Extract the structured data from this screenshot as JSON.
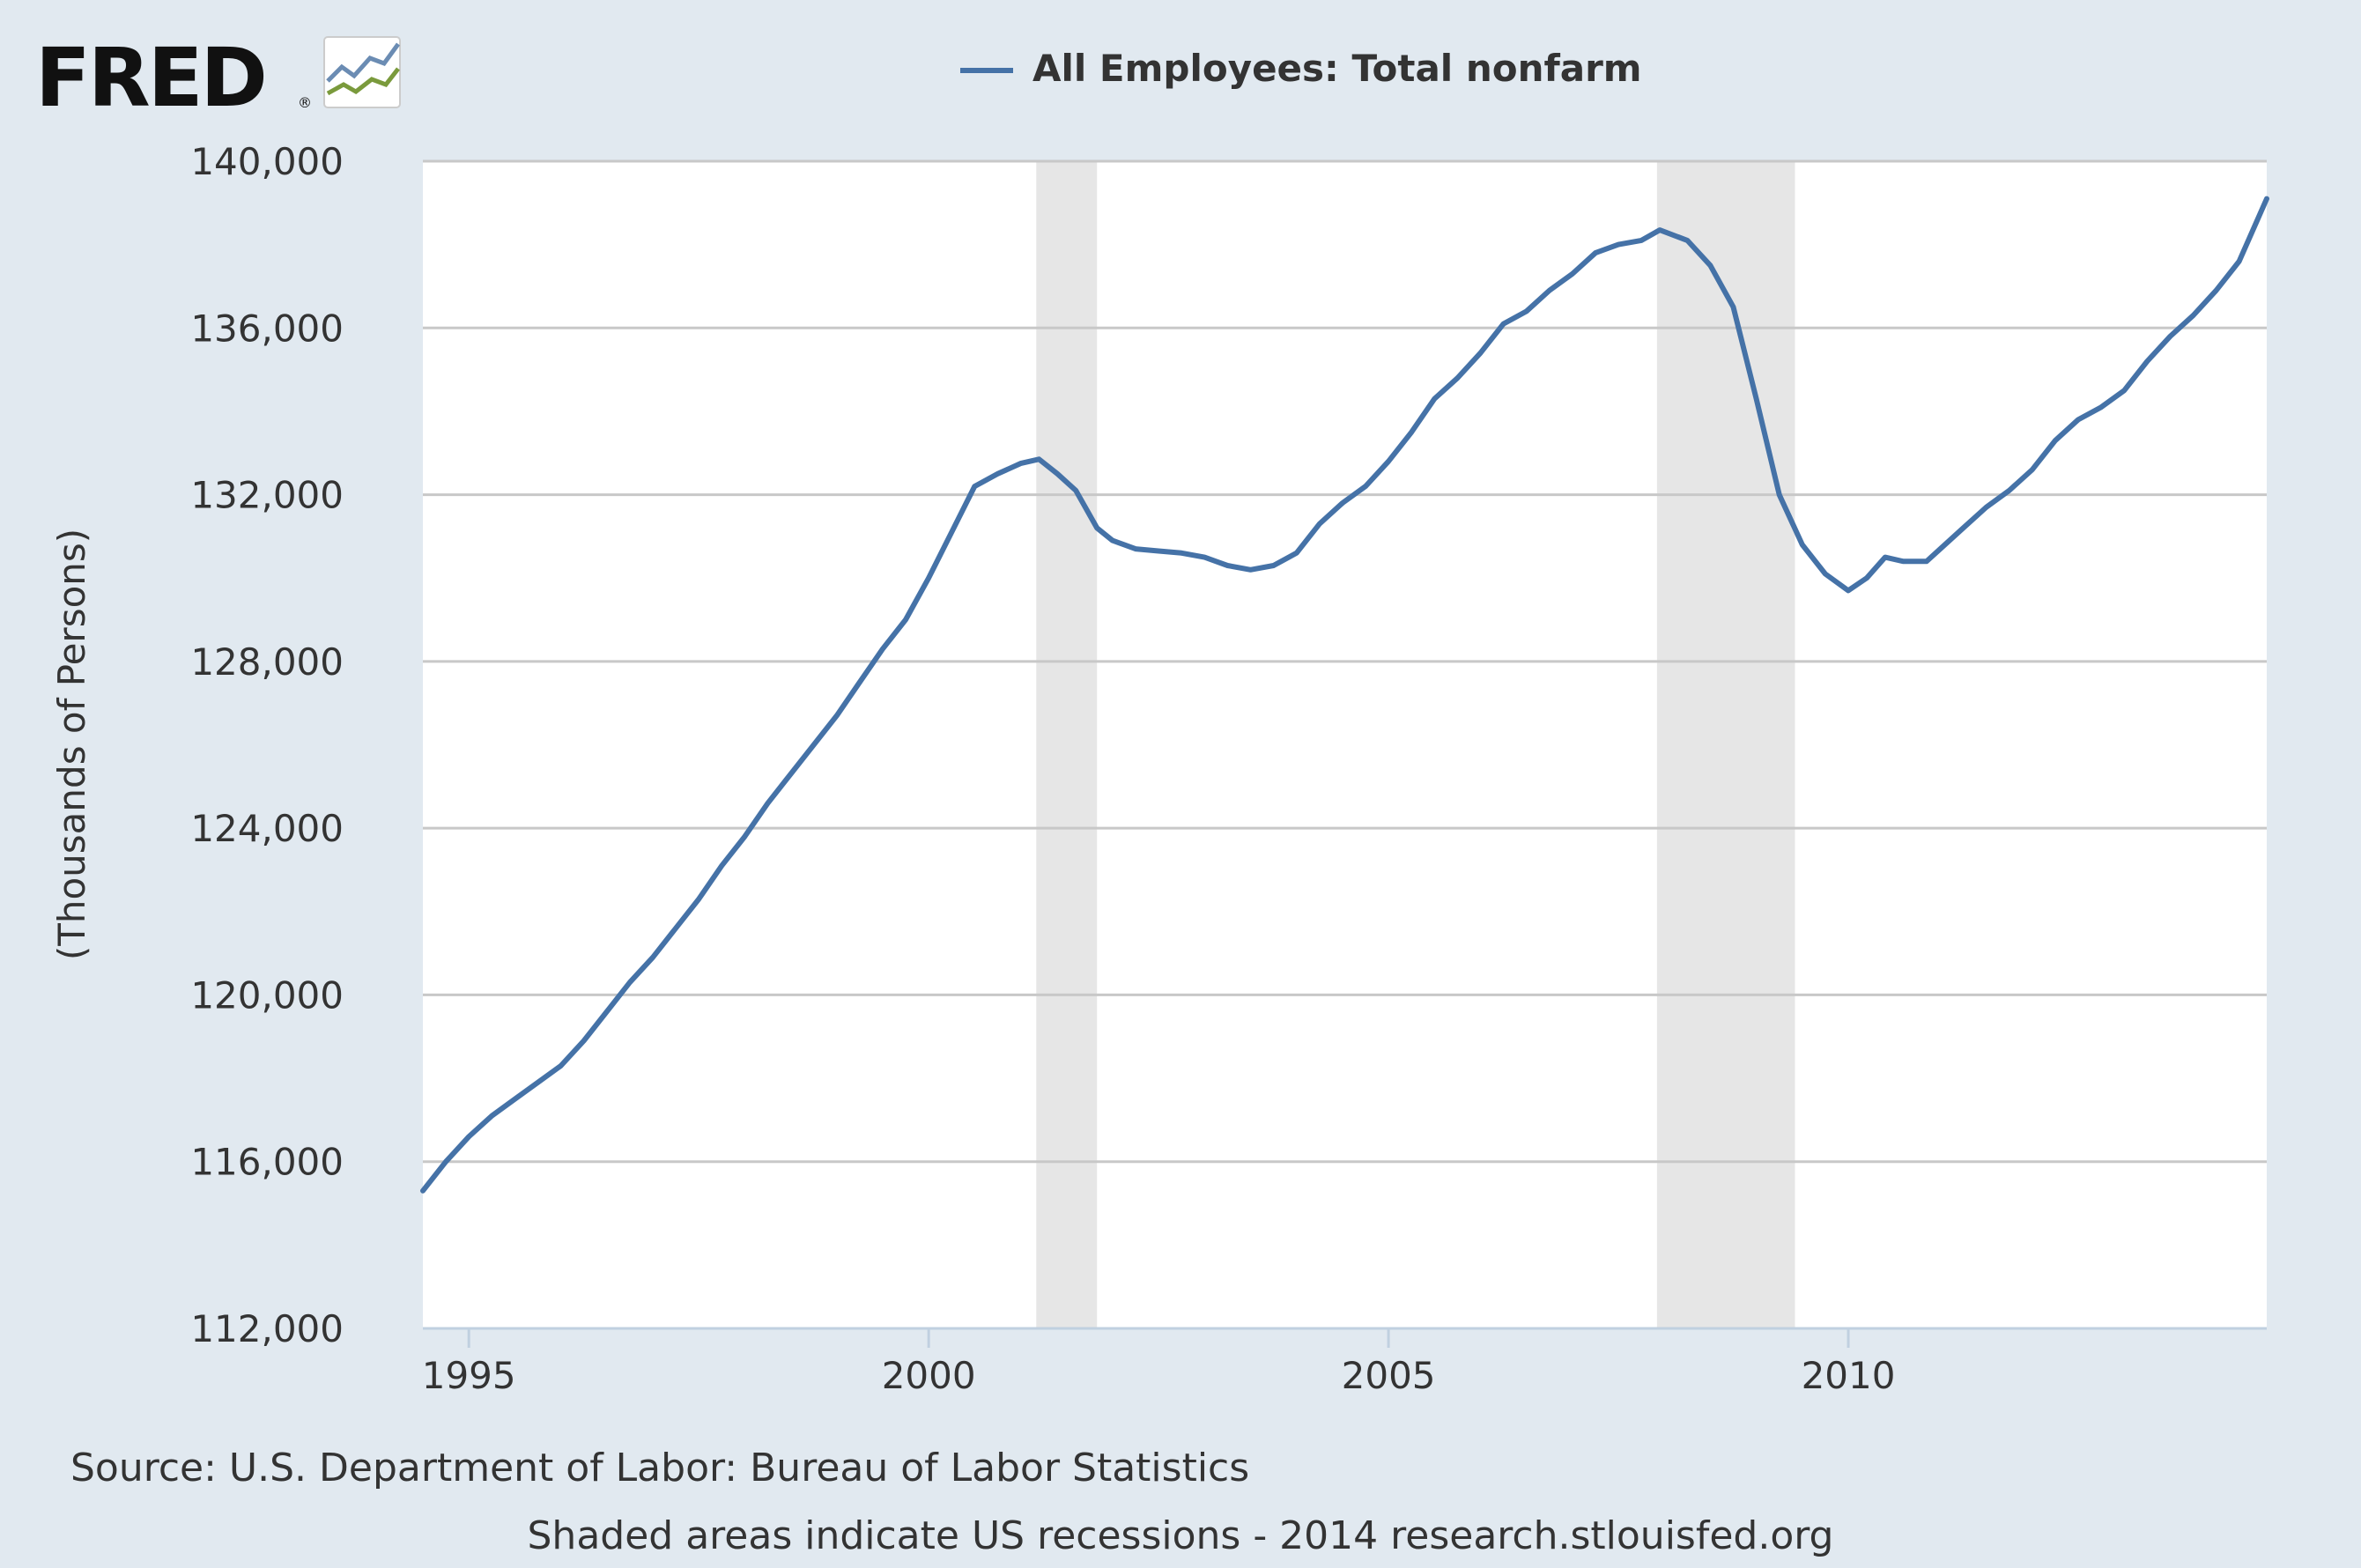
{
  "brand": {
    "logo_text": "FRED",
    "registered_mark": "®"
  },
  "chart_data": {
    "type": "line",
    "title": "",
    "xlabel": "",
    "ylabel": "(Thousands of Persons)",
    "x_range": [
      1994.5,
      2014.55
    ],
    "ylim": [
      112000,
      140000
    ],
    "x_ticks": [
      1995,
      2000,
      2005,
      2010
    ],
    "y_ticks": [
      112000,
      116000,
      120000,
      124000,
      128000,
      132000,
      136000,
      140000
    ],
    "x_tick_labels": [
      "1995",
      "2000",
      "2005",
      "2010"
    ],
    "y_tick_labels": [
      "112,000",
      "116,000",
      "120,000",
      "124,000",
      "128,000",
      "132,000",
      "136,000",
      "140,000"
    ],
    "grid": "horizontal",
    "legend": "top-center",
    "recessions": [
      {
        "start": 2001.17,
        "end": 2001.83
      },
      {
        "start": 2007.92,
        "end": 2009.42
      }
    ],
    "series": [
      {
        "name": "All Employees: Total nonfarm",
        "color": "#4572a7",
        "points": [
          [
            1994.5,
            115300
          ],
          [
            1994.75,
            116000
          ],
          [
            1995.0,
            116600
          ],
          [
            1995.25,
            117100
          ],
          [
            1995.5,
            117500
          ],
          [
            1995.75,
            117900
          ],
          [
            1996.0,
            118300
          ],
          [
            1996.25,
            118900
          ],
          [
            1996.5,
            119600
          ],
          [
            1996.75,
            120300
          ],
          [
            1997.0,
            120900
          ],
          [
            1997.25,
            121600
          ],
          [
            1997.5,
            122300
          ],
          [
            1997.75,
            123100
          ],
          [
            1998.0,
            123800
          ],
          [
            1998.25,
            124600
          ],
          [
            1998.5,
            125300
          ],
          [
            1998.75,
            126000
          ],
          [
            1999.0,
            126700
          ],
          [
            1999.25,
            127500
          ],
          [
            1999.5,
            128300
          ],
          [
            1999.75,
            129000
          ],
          [
            2000.0,
            130000
          ],
          [
            2000.25,
            131100
          ],
          [
            2000.5,
            132200
          ],
          [
            2000.75,
            132500
          ],
          [
            2001.0,
            132750
          ],
          [
            2001.2,
            132850
          ],
          [
            2001.4,
            132500
          ],
          [
            2001.6,
            132100
          ],
          [
            2001.83,
            131200
          ],
          [
            2002.0,
            130900
          ],
          [
            2002.25,
            130700
          ],
          [
            2002.5,
            130650
          ],
          [
            2002.75,
            130600
          ],
          [
            2003.0,
            130500
          ],
          [
            2003.25,
            130300
          ],
          [
            2003.5,
            130200
          ],
          [
            2003.75,
            130300
          ],
          [
            2004.0,
            130600
          ],
          [
            2004.25,
            131300
          ],
          [
            2004.5,
            131800
          ],
          [
            2004.75,
            132200
          ],
          [
            2005.0,
            132800
          ],
          [
            2005.25,
            133500
          ],
          [
            2005.5,
            134300
          ],
          [
            2005.75,
            134800
          ],
          [
            2006.0,
            135400
          ],
          [
            2006.25,
            136100
          ],
          [
            2006.5,
            136400
          ],
          [
            2006.75,
            136900
          ],
          [
            2007.0,
            137300
          ],
          [
            2007.25,
            137800
          ],
          [
            2007.5,
            138000
          ],
          [
            2007.75,
            138100
          ],
          [
            2007.95,
            138350
          ],
          [
            2008.25,
            138100
          ],
          [
            2008.5,
            137500
          ],
          [
            2008.75,
            136500
          ],
          [
            2009.0,
            134300
          ],
          [
            2009.25,
            132000
          ],
          [
            2009.5,
            130800
          ],
          [
            2009.75,
            130100
          ],
          [
            2010.0,
            129700
          ],
          [
            2010.2,
            130000
          ],
          [
            2010.4,
            130500
          ],
          [
            2010.6,
            130400
          ],
          [
            2010.85,
            130400
          ],
          [
            2011.0,
            130700
          ],
          [
            2011.25,
            131200
          ],
          [
            2011.5,
            131700
          ],
          [
            2011.75,
            132100
          ],
          [
            2012.0,
            132600
          ],
          [
            2012.25,
            133300
          ],
          [
            2012.5,
            133800
          ],
          [
            2012.75,
            134100
          ],
          [
            2013.0,
            134500
          ],
          [
            2013.25,
            135200
          ],
          [
            2013.5,
            135800
          ],
          [
            2013.75,
            136300
          ],
          [
            2014.0,
            136900
          ],
          [
            2014.25,
            137600
          ],
          [
            2014.55,
            139100
          ]
        ]
      }
    ]
  },
  "source_text": "Source: U.S. Department of Labor: Bureau of Labor Statistics",
  "footer_text": "Shaded areas indicate US recessions - 2014 research.stlouisfed.org"
}
